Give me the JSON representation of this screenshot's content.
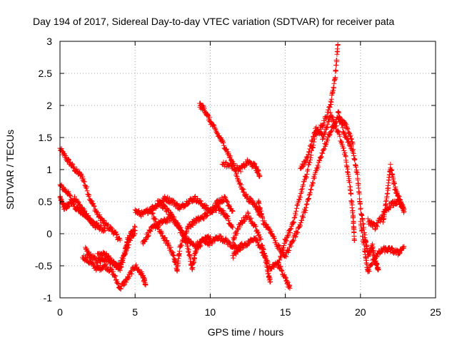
{
  "chart_data": {
    "type": "scatter",
    "title": "Day 194 of 2017, Sidereal Day-to-day VTEC variation (SDTVAR) for receiver pata",
    "xlabel": "GPS time / hours",
    "ylabel": "SDTVAR / TECUs",
    "xlim": [
      0,
      25
    ],
    "ylim": [
      -1,
      3
    ],
    "xticks": [
      "0",
      "5",
      "10",
      "15",
      "20",
      "25"
    ],
    "yticks": [
      "-1",
      "-0.5",
      "0",
      "0.5",
      "1",
      "1.5",
      "2",
      "2.5",
      "3"
    ],
    "grid": true,
    "marker": "+",
    "series": [
      {
        "name": "SDTVAR",
        "color": "#ff0000",
        "tracks": [
          [
            [
              0,
              1.32
            ],
            [
              0.5,
              1.15
            ],
            [
              1.0,
              1.0
            ],
            [
              1.5,
              0.88
            ],
            [
              2.0,
              0.55
            ],
            [
              2.5,
              0.3
            ],
            [
              3.0,
              0.15
            ],
            [
              3.5,
              0.05
            ],
            [
              4.0,
              -0.1
            ]
          ],
          [
            [
              0,
              0.75
            ],
            [
              0.5,
              0.65
            ],
            [
              1.0,
              0.42
            ],
            [
              1.5,
              0.32
            ],
            [
              2.0,
              0.22
            ],
            [
              2.5,
              0.12
            ],
            [
              3.0,
              0.05
            ]
          ],
          [
            [
              0,
              0.55
            ],
            [
              0.3,
              0.4
            ],
            [
              0.6,
              0.45
            ],
            [
              1.0,
              0.55
            ],
            [
              1.5,
              0.38
            ],
            [
              2.0,
              0.2
            ],
            [
              2.5,
              0.1
            ]
          ],
          [
            [
              1.7,
              -0.25
            ],
            [
              2.0,
              -0.35
            ],
            [
              2.5,
              -0.42
            ],
            [
              3.0,
              -0.38
            ],
            [
              3.5,
              -0.45
            ],
            [
              4.0,
              -0.5
            ],
            [
              4.3,
              -0.3
            ],
            [
              4.5,
              -0.1
            ],
            [
              5.0,
              0.1
            ]
          ],
          [
            [
              1.5,
              -0.35
            ],
            [
              2.0,
              -0.45
            ],
            [
              2.5,
              -0.55
            ],
            [
              3.0,
              -0.5
            ],
            [
              3.5,
              -0.6
            ],
            [
              4.0,
              -0.85
            ],
            [
              4.5,
              -0.7
            ],
            [
              5.0,
              -0.5
            ],
            [
              5.5,
              -0.65
            ],
            [
              5.7,
              -0.8
            ]
          ],
          [
            [
              2.5,
              -0.35
            ],
            [
              3.0,
              -0.32
            ],
            [
              3.5,
              -0.45
            ],
            [
              4.0,
              -0.55
            ],
            [
              4.5,
              -0.2
            ],
            [
              5.0,
              0.05
            ]
          ],
          [
            [
              5.0,
              0.35
            ],
            [
              5.5,
              0.3
            ],
            [
              6.0,
              0.38
            ],
            [
              6.5,
              0.45
            ],
            [
              7.0,
              0.55
            ],
            [
              7.5,
              0.5
            ],
            [
              8.0,
              0.4
            ],
            [
              8.5,
              0.5
            ],
            [
              9.0,
              0.55
            ],
            [
              9.5,
              0.45
            ],
            [
              10.0,
              0.35
            ],
            [
              10.5,
              0.4
            ],
            [
              11.0,
              0.3
            ],
            [
              11.5,
              0.1
            ]
          ],
          [
            [
              5.5,
              -0.15
            ],
            [
              6.0,
              0.05
            ],
            [
              6.5,
              0.15
            ],
            [
              7.0,
              0.2
            ],
            [
              7.5,
              0.25
            ],
            [
              8.0,
              0.05
            ],
            [
              8.5,
              -0.1
            ],
            [
              9.0,
              -0.2
            ],
            [
              9.5,
              -0.1
            ],
            [
              10.0,
              -0.15
            ],
            [
              10.5,
              -0.05
            ],
            [
              11.0,
              -0.1
            ],
            [
              11.5,
              -0.2
            ],
            [
              12.0,
              -0.25
            ]
          ],
          [
            [
              6.0,
              0.4
            ],
            [
              6.5,
              0.1
            ],
            [
              7.0,
              -0.1
            ],
            [
              7.5,
              -0.3
            ],
            [
              7.8,
              -0.55
            ],
            [
              8.0,
              -0.2
            ],
            [
              8.5,
              0.1
            ],
            [
              9.0,
              0.2
            ],
            [
              9.5,
              0.25
            ],
            [
              10.0,
              0.35
            ],
            [
              10.5,
              0.5
            ],
            [
              11.0,
              0.55
            ],
            [
              11.5,
              0.35
            ]
          ],
          [
            [
              6.5,
              0.5
            ],
            [
              7.0,
              0.4
            ],
            [
              7.5,
              0.25
            ],
            [
              8.0,
              0.1
            ],
            [
              8.5,
              -0.2
            ],
            [
              8.8,
              -0.55
            ],
            [
              9.0,
              -0.3
            ],
            [
              9.5,
              -0.1
            ],
            [
              10.0,
              -0.05
            ]
          ],
          [
            [
              9.3,
              2.0
            ],
            [
              9.6,
              1.95
            ],
            [
              10.0,
              1.75
            ],
            [
              10.5,
              1.55
            ],
            [
              11.0,
              1.35
            ],
            [
              11.5,
              1.1
            ],
            [
              12.0,
              0.75
            ],
            [
              12.5,
              0.55
            ],
            [
              13.0,
              0.45
            ],
            [
              13.3,
              0.3
            ]
          ],
          [
            [
              10.8,
              1.1
            ],
            [
              11.5,
              1.05
            ],
            [
              12.0,
              1.0
            ],
            [
              12.5,
              1.12
            ],
            [
              13.0,
              1.05
            ],
            [
              13.3,
              0.9
            ]
          ],
          [
            [
              11.5,
              -0.1
            ],
            [
              12.0,
              0.15
            ],
            [
              12.5,
              0.3
            ],
            [
              13.0,
              0.1
            ],
            [
              13.5,
              -0.2
            ],
            [
              13.8,
              -0.55
            ],
            [
              14.0,
              -0.75
            ]
          ],
          [
            [
              11.5,
              -0.35
            ],
            [
              12.0,
              -0.2
            ],
            [
              12.5,
              -0.15
            ],
            [
              13.0,
              -0.05
            ],
            [
              13.5,
              -0.3
            ],
            [
              14.0,
              -0.55
            ],
            [
              14.5,
              -0.45
            ],
            [
              15.0,
              -0.7
            ],
            [
              15.3,
              -0.85
            ]
          ],
          [
            [
              13.2,
              0.5
            ],
            [
              13.5,
              0.2
            ],
            [
              14.0,
              0.05
            ],
            [
              14.5,
              -0.2
            ],
            [
              15.0,
              -0.35
            ],
            [
              15.5,
              -0.1
            ],
            [
              16.0,
              0.15
            ],
            [
              16.5,
              0.5
            ],
            [
              17.0,
              0.95
            ],
            [
              17.5,
              1.3
            ],
            [
              18.0,
              1.6
            ],
            [
              18.5,
              1.8
            ],
            [
              19.0,
              1.7
            ],
            [
              19.5,
              1.4
            ]
          ],
          [
            [
              14.5,
              -0.5
            ],
            [
              15.0,
              -0.1
            ],
            [
              15.5,
              0.15
            ],
            [
              16.0,
              0.6
            ],
            [
              16.5,
              1.0
            ],
            [
              17.0,
              1.55
            ],
            [
              17.5,
              1.7
            ],
            [
              18.0,
              2.0
            ],
            [
              18.3,
              2.4
            ],
            [
              18.5,
              2.95
            ]
          ],
          [
            [
              16.0,
              1.0
            ],
            [
              16.5,
              1.2
            ],
            [
              17.0,
              1.65
            ],
            [
              17.5,
              1.5
            ],
            [
              18.0,
              1.85
            ],
            [
              18.5,
              1.6
            ],
            [
              19.0,
              1.2
            ],
            [
              19.3,
              0.75
            ],
            [
              19.5,
              0.3
            ],
            [
              19.6,
              -0.1
            ]
          ],
          [
            [
              18.5,
              1.9
            ],
            [
              19.0,
              1.5
            ],
            [
              19.5,
              1.3
            ],
            [
              19.8,
              0.9
            ],
            [
              20.0,
              0.4
            ],
            [
              20.3,
              -0.05
            ],
            [
              20.5,
              -0.35
            ],
            [
              20.8,
              -0.2
            ],
            [
              21.0,
              -0.45
            ],
            [
              21.2,
              -0.55
            ]
          ],
          [
            [
              20.0,
              0.2
            ],
            [
              20.3,
              -0.3
            ],
            [
              20.5,
              -0.6
            ],
            [
              21.0,
              -0.35
            ],
            [
              21.5,
              -0.25
            ],
            [
              22.0,
              -0.25
            ],
            [
              22.5,
              -0.3
            ],
            [
              22.9,
              -0.2
            ]
          ],
          [
            [
              21.5,
              0.15
            ],
            [
              21.8,
              0.65
            ],
            [
              22.0,
              1.05
            ],
            [
              22.3,
              0.7
            ],
            [
              22.6,
              0.55
            ],
            [
              22.9,
              0.35
            ]
          ],
          [
            [
              20.5,
              0.2
            ],
            [
              21.0,
              0.1
            ],
            [
              21.5,
              0.3
            ],
            [
              22.0,
              0.45
            ],
            [
              22.5,
              0.5
            ],
            [
              22.9,
              0.38
            ]
          ]
        ]
      }
    ]
  }
}
